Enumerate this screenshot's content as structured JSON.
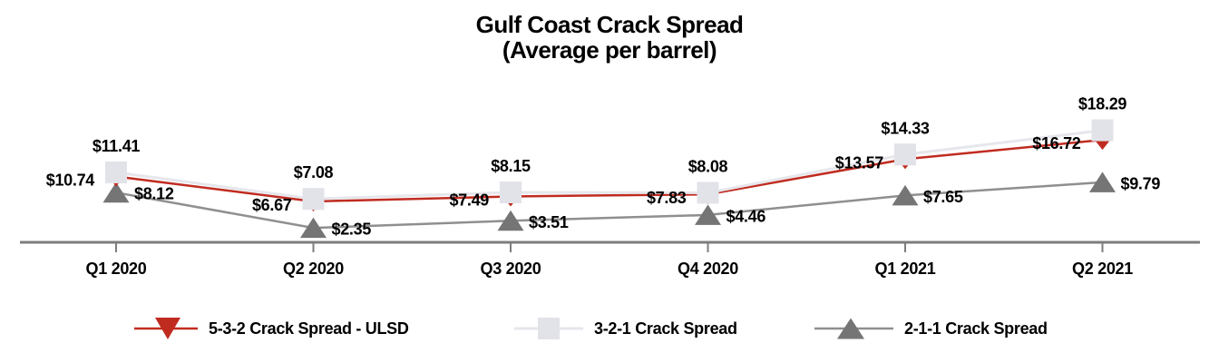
{
  "title": {
    "line1": "Gulf Coast Crack Spread",
    "line2": "(Average per barrel)"
  },
  "chart_data": {
    "type": "line",
    "title": "Gulf Coast Crack Spread (Average per barrel)",
    "categories": [
      "Q1 2020",
      "Q2 2020",
      "Q3 2020",
      "Q4 2020",
      "Q1 2021",
      "Q2 2021"
    ],
    "series": [
      {
        "name": "5-3-2 Crack Spread - ULSD",
        "values": [
          10.74,
          6.67,
          7.49,
          7.83,
          13.57,
          16.72
        ],
        "labels": [
          "$10.74",
          "$6.67",
          "$7.49",
          "$7.83",
          "$13.57",
          "$16.72"
        ],
        "marker": "triangle-down",
        "color": "#c02b20",
        "line_color": "#c02b20",
        "label_position": "left"
      },
      {
        "name": "3-2-1 Crack Spread",
        "values": [
          11.41,
          7.08,
          8.15,
          8.08,
          14.33,
          18.29
        ],
        "labels": [
          "$11.41",
          "$7.08",
          "$8.15",
          "$8.08",
          "$14.33",
          "$18.29"
        ],
        "marker": "square",
        "color": "#e2e3e9",
        "line_color": "#e6e7ec",
        "label_position": "above"
      },
      {
        "name": "2-1-1 Crack Spread",
        "values": [
          8.12,
          2.35,
          3.51,
          4.46,
          7.65,
          9.79
        ],
        "labels": [
          "$8.12",
          "$2.35",
          "$3.51",
          "$4.46",
          "$7.65",
          "$9.79"
        ],
        "marker": "triangle-up",
        "color": "#757575",
        "line_color": "#8f8f8f",
        "label_position": "right"
      }
    ],
    "xlabel": "",
    "ylabel": "",
    "ylim": [
      0,
      22
    ],
    "y_axis_visible": false,
    "grid": false,
    "data_labels_visible": true,
    "value_prefix": "$",
    "axis_color": "#7d7d7d",
    "text_color": "#000000",
    "legend_position": "bottom"
  }
}
